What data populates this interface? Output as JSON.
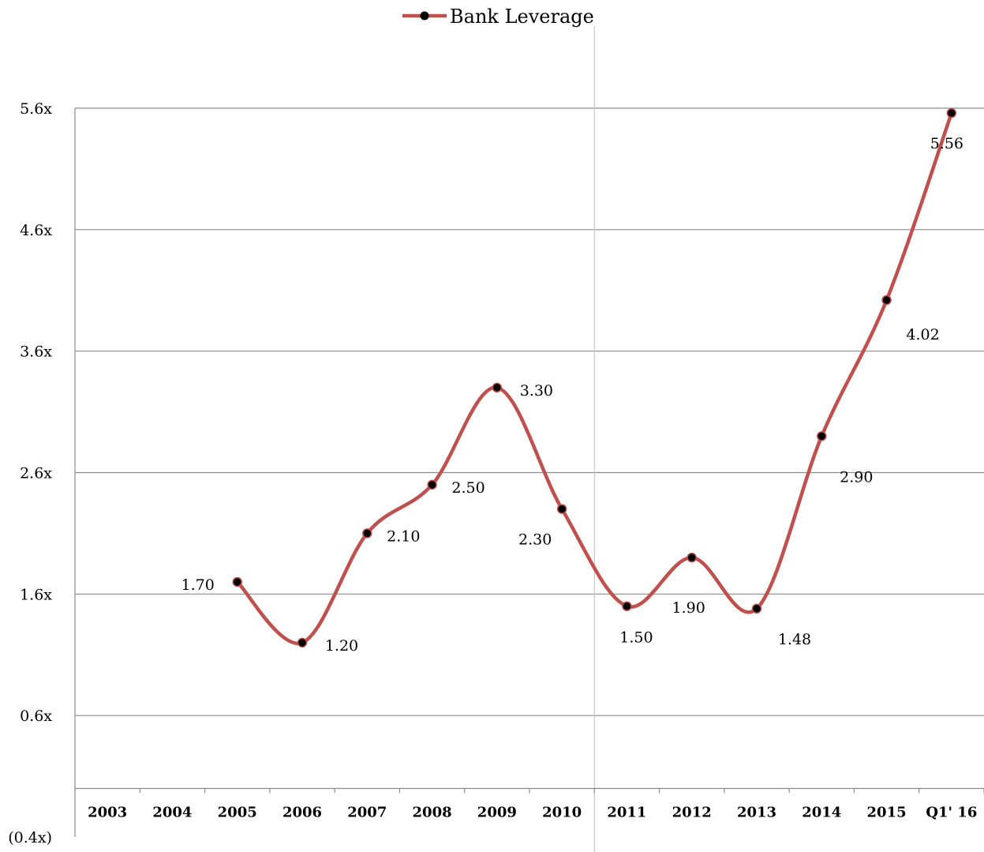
{
  "chart_data": {
    "type": "line",
    "title": "",
    "xlabel": "",
    "ylabel": "",
    "categories": [
      "2003",
      "2004",
      "2005",
      "2006",
      "2007",
      "2008",
      "2009",
      "2010",
      "2011",
      "2012",
      "2013",
      "2014",
      "2015",
      "Q1' 16"
    ],
    "series": [
      {
        "name": "Bank Leverage",
        "color": "#c0504d",
        "values": [
          null,
          null,
          1.7,
          1.2,
          2.1,
          2.5,
          3.3,
          2.3,
          1.5,
          1.9,
          1.48,
          2.9,
          4.02,
          5.56
        ],
        "labels": [
          "",
          "",
          "1.70",
          "1.20",
          "2.10",
          "2.50",
          "3.30",
          "2.30",
          "1.50",
          "1.90",
          "1.48",
          "2.90",
          "4.02",
          "5.56"
        ]
      }
    ],
    "yticks": [
      -0.4,
      0.6,
      1.6,
      2.6,
      3.6,
      4.6,
      5.6
    ],
    "ytick_labels": [
      "(0.4x)",
      "0.6x",
      "1.6x",
      "2.6x",
      "3.6x",
      "4.6x",
      "5.6x"
    ],
    "ylim": [
      -0.4,
      5.6
    ],
    "grid": true,
    "x_axis_crosses_at": 0.0,
    "legend": "top-center",
    "divider_after_category": "2010"
  }
}
